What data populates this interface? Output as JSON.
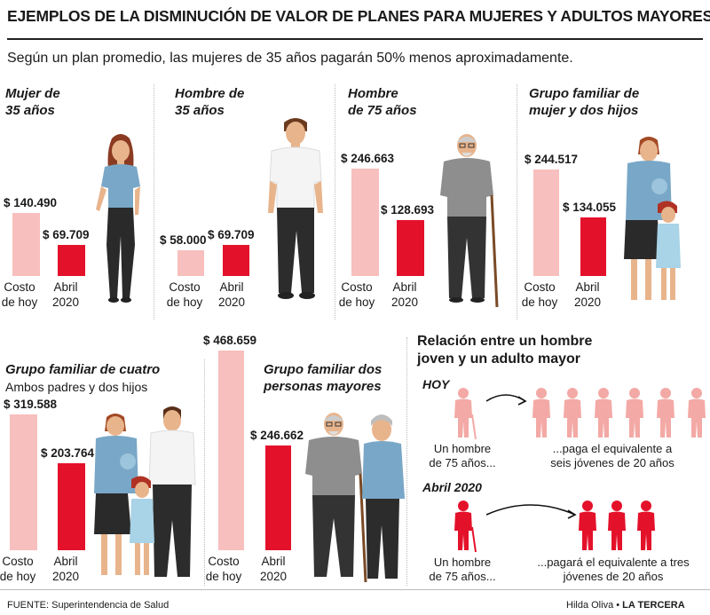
{
  "header": {
    "title": "EJEMPLOS DE LA DISMINUCIÓN DE VALOR DE PLANES PARA MUJERES Y ADULTOS MAYORES",
    "subtitle": "Según un plan promedio, las mujeres de 35 años pagarán 50% menos aproximadamente."
  },
  "colors": {
    "before": "#f7bfbd",
    "after": "#e4112a",
    "icon_old": "#f3a9a5",
    "icon_new": "#e4112a"
  },
  "chart_data": [
    {
      "type": "bar",
      "title": "Mujer de 35 años",
      "categories": [
        "Costo de hoy",
        "Abril 2020"
      ],
      "values": [
        140490,
        69709
      ],
      "labels": [
        "$ 140.490",
        "$ 69.709"
      ]
    },
    {
      "type": "bar",
      "title": "Hombre de 35 años",
      "categories": [
        "Costo de hoy",
        "Abril 2020"
      ],
      "values": [
        58000,
        69709
      ],
      "labels": [
        "$ 58.000",
        "$ 69.709"
      ]
    },
    {
      "type": "bar",
      "title": "Hombre de 75 años",
      "categories": [
        "Costo de hoy",
        "Abril 2020"
      ],
      "values": [
        246663,
        128693
      ],
      "labels": [
        "$ 246.663",
        "$ 128.693"
      ]
    },
    {
      "type": "bar",
      "title": "Grupo familiar de mujer y dos hijos",
      "categories": [
        "Costo de hoy",
        "Abril 2020"
      ],
      "values": [
        244517,
        134055
      ],
      "labels": [
        "$ 244.517",
        "$ 134.055"
      ]
    },
    {
      "type": "bar",
      "title": "Grupo familiar de cuatro",
      "subtitle": "Ambos padres y dos hijos",
      "categories": [
        "Costo de hoy",
        "Abril 2020"
      ],
      "values": [
        319588,
        203764
      ],
      "labels": [
        "$ 319.588",
        "$ 203.764"
      ]
    },
    {
      "type": "bar",
      "title": "Grupo familiar dos personas mayores",
      "categories": [
        "Costo de hoy",
        "Abril 2020"
      ],
      "values": [
        468659,
        246662
      ],
      "labels": [
        "$ 468.659",
        "$ 246.662"
      ]
    }
  ],
  "panels": [
    {
      "title_l1": "Mujer de",
      "title_l2": "35 años"
    },
    {
      "title_l1": "Hombre de",
      "title_l2": "35 años"
    },
    {
      "title_l1": "Hombre",
      "title_l2": "de 75 años"
    },
    {
      "title_l1": "Grupo familiar de",
      "title_l2": "mujer y dos hijos"
    },
    {
      "title_l1": "Grupo familiar de cuatro",
      "title_l2": "Ambos padres y dos hijos"
    },
    {
      "title_l1": "Grupo familiar dos",
      "title_l2": "personas mayores"
    }
  ],
  "captions": {
    "before_l1": "Costo",
    "before_l2": "de hoy",
    "after_l1": "Abril",
    "after_l2": "2020"
  },
  "relation": {
    "title_l1": "Relación entre un hombre",
    "title_l2": "joven y un adulto mayor",
    "today": {
      "label": "HOY",
      "left_l1": "Un hombre",
      "left_l2": "de 75 años...",
      "right_l1": "...paga el equivalente a",
      "right_l2": "seis jóvenes de 20 años",
      "young_count": 6
    },
    "april": {
      "label": "Abril 2020",
      "left_l1": "Un hombre",
      "left_l2": "de 75 años...",
      "right_l1": "...pagará el equivalente a tres",
      "right_l2": "jóvenes de 20 años",
      "young_count": 3
    }
  },
  "footer": {
    "source": "FUENTE: Superintendencia de Salud",
    "credit_author": "Hilda Oliva •",
    "credit_brand": "LA TERCERA"
  }
}
